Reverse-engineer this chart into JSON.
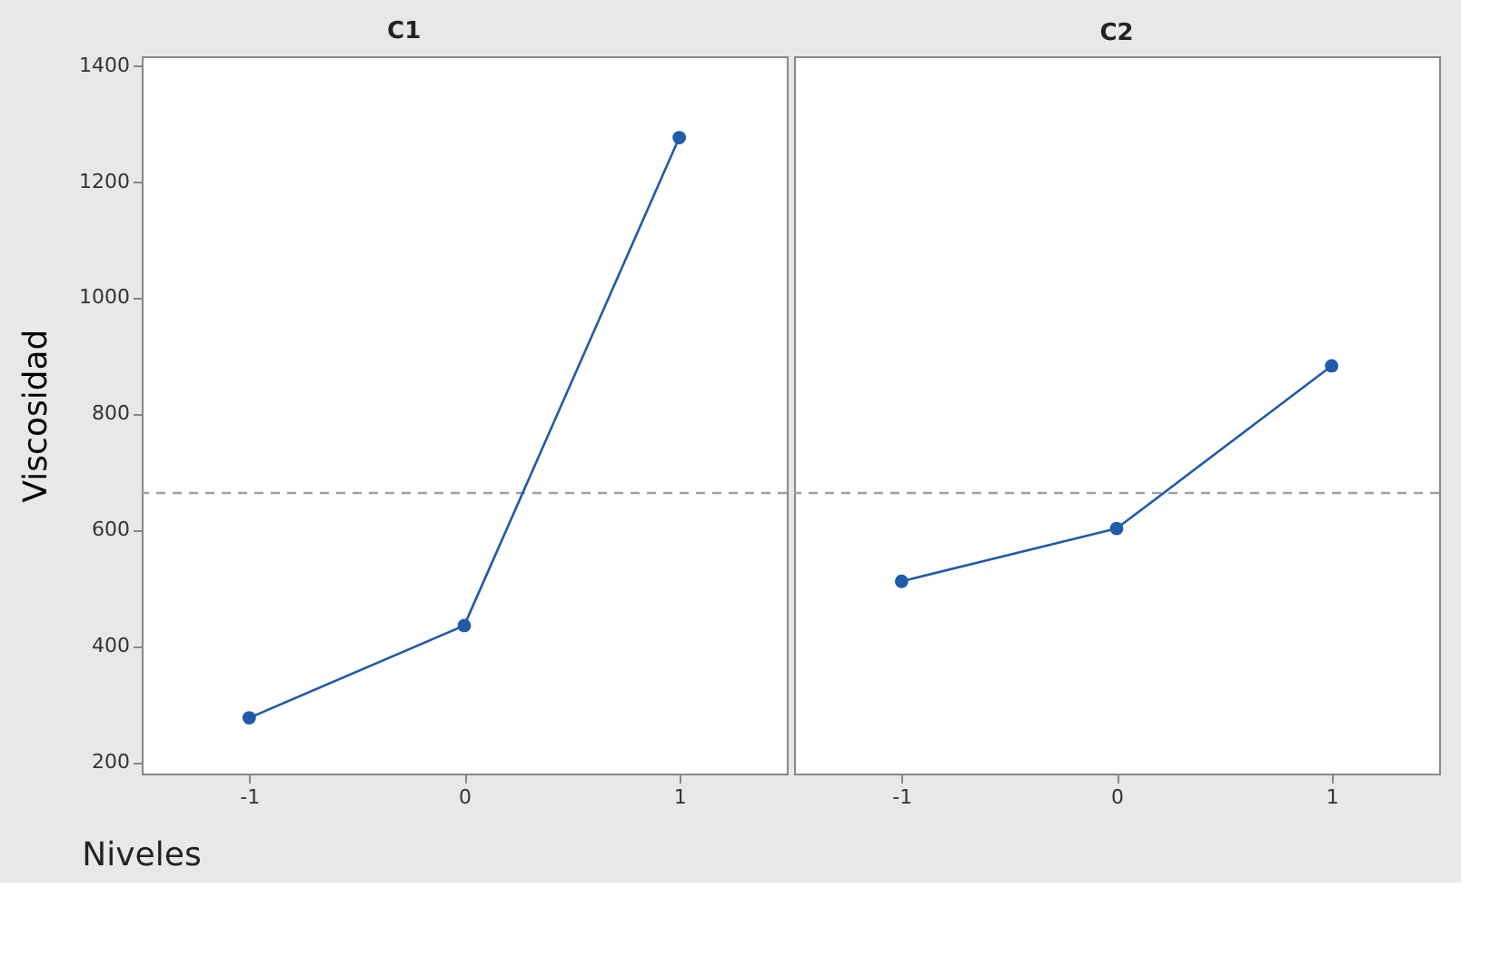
{
  "chart_data": [
    {
      "type": "line",
      "title": "C1",
      "xlabel": "Niveles",
      "ylabel": "Viscosidad",
      "x": [
        -1,
        0,
        1
      ],
      "series": [
        {
          "color": "#1f5ba8",
          "values": [
            276,
            435,
            1275
          ]
        }
      ],
      "xlim": [
        -1.5,
        1.5
      ],
      "xticks": [
        -1,
        0,
        1
      ],
      "ylim": [
        180,
        1415
      ],
      "yticks": [
        200,
        400,
        600,
        800,
        1000,
        1200,
        1400
      ],
      "ref_lines": [
        {
          "axis": "y",
          "value": 663,
          "color": "#a0a0a0",
          "line_style": "dashed"
        }
      ],
      "marker": "circle",
      "line_style": "solid",
      "grid": false
    },
    {
      "type": "line",
      "title": "C2",
      "x": [
        -1,
        0,
        1
      ],
      "series": [
        {
          "color": "#1f5ba8",
          "values": [
            511,
            602,
            882
          ]
        }
      ],
      "xlim": [
        -1.5,
        1.5
      ],
      "xticks": [
        -1,
        0,
        1
      ],
      "ylim": [
        180,
        1415
      ],
      "yticks": [
        200,
        400,
        600,
        800,
        1000,
        1200,
        1400
      ],
      "ref_lines": [
        {
          "axis": "y",
          "value": 663,
          "color": "#a0a0a0",
          "line_style": "dashed"
        }
      ],
      "marker": "circle",
      "line_style": "solid",
      "grid": false,
      "tick_labels": "x"
    }
  ]
}
